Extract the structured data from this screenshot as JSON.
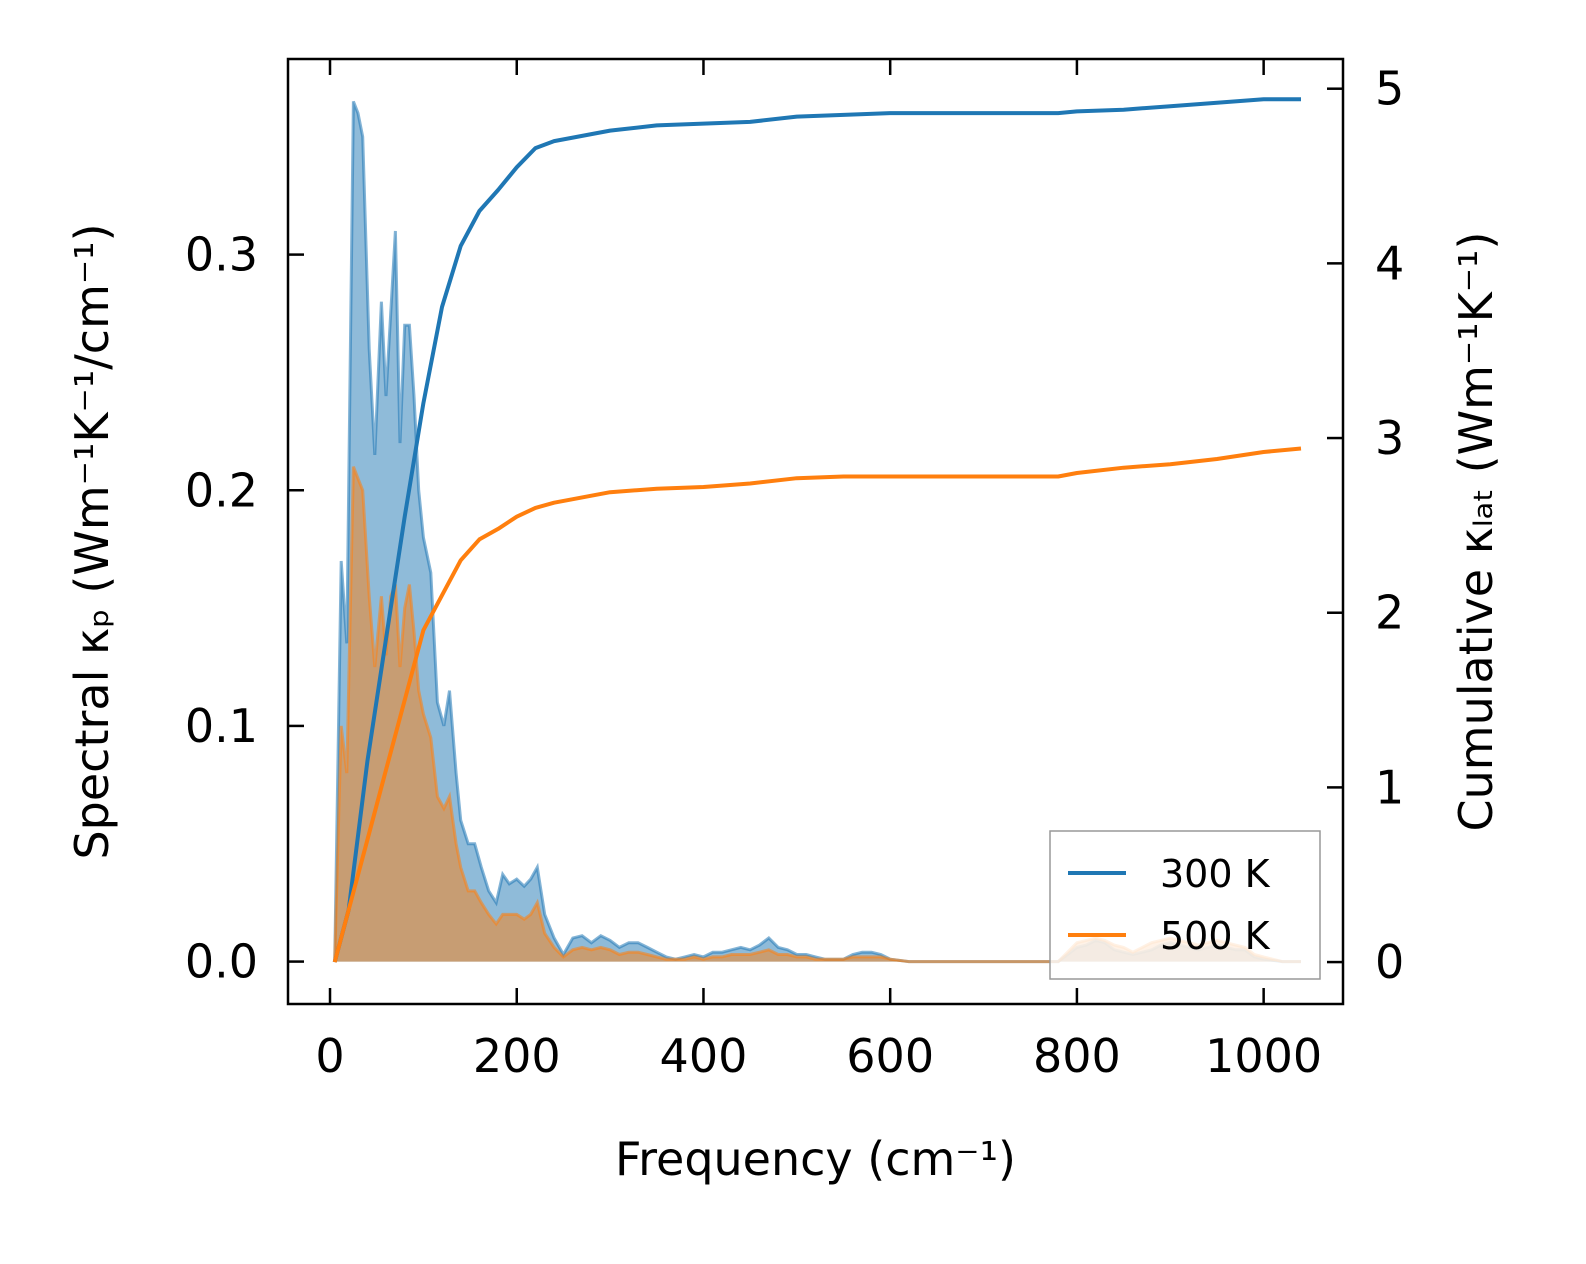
{
  "chart_data": {
    "type": "line",
    "xlabel": "Frequency (cm⁻¹)",
    "ylabel_left": "Spectral κₚ (Wm⁻¹K⁻¹/cm⁻¹)",
    "ylabel_right": "Cumulative κₗₐₜ (Wm⁻¹K⁻¹)",
    "xlim": [
      -45,
      1085
    ],
    "ylim_left": [
      -0.018,
      0.383
    ],
    "ylim_right": [
      -0.24,
      5.17
    ],
    "x_ticks": [
      0,
      200,
      400,
      600,
      800,
      1000
    ],
    "x_tick_labels": [
      "0",
      "200",
      "400",
      "600",
      "800",
      "1000"
    ],
    "y_left_ticks": [
      0.0,
      0.1,
      0.2,
      0.3
    ],
    "y_left_tick_labels": [
      "0.0",
      "0.1",
      "0.2",
      "0.3"
    ],
    "y_right_ticks": [
      0,
      1,
      2,
      3,
      4,
      5
    ],
    "y_right_tick_labels": [
      "0",
      "1",
      "2",
      "3",
      "4",
      "5"
    ],
    "legend": {
      "position": "lower-right",
      "entries": [
        "300 K",
        "500 K"
      ]
    },
    "series": [
      {
        "name": "300 K",
        "color": "#1f77b4",
        "spectral": {
          "x": [
            5,
            12,
            18,
            25,
            30,
            35,
            42,
            48,
            55,
            60,
            65,
            70,
            75,
            80,
            85,
            90,
            95,
            100,
            108,
            115,
            122,
            128,
            135,
            140,
            148,
            155,
            162,
            170,
            178,
            185,
            192,
            200,
            208,
            215,
            222,
            230,
            240,
            250,
            260,
            270,
            280,
            290,
            300,
            310,
            320,
            330,
            340,
            350,
            360,
            370,
            380,
            390,
            400,
            410,
            420,
            430,
            440,
            450,
            460,
            470,
            480,
            490,
            500,
            510,
            520,
            530,
            540,
            550,
            560,
            570,
            580,
            590,
            600,
            620,
            650,
            700,
            750,
            780,
            790,
            800,
            810,
            820,
            830,
            840,
            850,
            860,
            870,
            880,
            890,
            900,
            910,
            920,
            930,
            940,
            950,
            960,
            970,
            980,
            990,
            1000,
            1020,
            1040
          ],
          "y": [
            0.0,
            0.17,
            0.135,
            0.365,
            0.36,
            0.35,
            0.26,
            0.215,
            0.28,
            0.24,
            0.275,
            0.31,
            0.22,
            0.27,
            0.27,
            0.24,
            0.2,
            0.18,
            0.165,
            0.11,
            0.1,
            0.115,
            0.08,
            0.06,
            0.05,
            0.05,
            0.04,
            0.03,
            0.025,
            0.037,
            0.033,
            0.035,
            0.032,
            0.035,
            0.04,
            0.02,
            0.01,
            0.003,
            0.01,
            0.011,
            0.008,
            0.011,
            0.009,
            0.006,
            0.008,
            0.008,
            0.006,
            0.004,
            0.002,
            0.001,
            0.002,
            0.003,
            0.002,
            0.004,
            0.004,
            0.005,
            0.006,
            0.005,
            0.007,
            0.01,
            0.006,
            0.005,
            0.003,
            0.003,
            0.002,
            0.001,
            0.001,
            0.001,
            0.003,
            0.004,
            0.004,
            0.003,
            0.001,
            0.0,
            0.0,
            0.0,
            0.0,
            0.0,
            0.003,
            0.006,
            0.007,
            0.009,
            0.008,
            0.005,
            0.004,
            0.003,
            0.004,
            0.005,
            0.007,
            0.008,
            0.007,
            0.006,
            0.005,
            0.006,
            0.007,
            0.006,
            0.005,
            0.005,
            0.002,
            0.001,
            0.0,
            0.0
          ]
        },
        "cumulative": {
          "x": [
            5,
            20,
            40,
            60,
            80,
            100,
            120,
            140,
            160,
            180,
            200,
            220,
            240,
            260,
            280,
            300,
            350,
            400,
            450,
            500,
            550,
            600,
            650,
            700,
            750,
            780,
            800,
            850,
            900,
            950,
            1000,
            1040
          ],
          "y": [
            0.0,
            0.3,
            1.15,
            1.85,
            2.55,
            3.2,
            3.75,
            4.1,
            4.3,
            4.42,
            4.55,
            4.66,
            4.7,
            4.72,
            4.74,
            4.76,
            4.79,
            4.8,
            4.81,
            4.84,
            4.85,
            4.86,
            4.86,
            4.86,
            4.86,
            4.86,
            4.87,
            4.88,
            4.9,
            4.92,
            4.94,
            4.94
          ]
        }
      },
      {
        "name": "500 K",
        "color": "#ff7f0e",
        "spectral": {
          "x": [
            5,
            12,
            18,
            25,
            30,
            35,
            42,
            48,
            55,
            60,
            65,
            70,
            75,
            80,
            85,
            90,
            95,
            100,
            108,
            115,
            122,
            128,
            135,
            140,
            148,
            155,
            162,
            170,
            178,
            185,
            192,
            200,
            208,
            215,
            222,
            230,
            240,
            250,
            260,
            270,
            280,
            290,
            300,
            310,
            320,
            330,
            340,
            350,
            360,
            370,
            380,
            390,
            400,
            410,
            420,
            430,
            440,
            450,
            460,
            470,
            480,
            490,
            500,
            510,
            520,
            530,
            540,
            550,
            560,
            570,
            580,
            590,
            600,
            620,
            650,
            700,
            750,
            780,
            790,
            800,
            810,
            820,
            830,
            840,
            850,
            860,
            870,
            880,
            890,
            900,
            910,
            920,
            930,
            940,
            950,
            960,
            970,
            980,
            990,
            1000,
            1020,
            1040
          ],
          "y": [
            0.0,
            0.1,
            0.08,
            0.21,
            0.205,
            0.2,
            0.155,
            0.125,
            0.155,
            0.13,
            0.155,
            0.16,
            0.125,
            0.15,
            0.16,
            0.14,
            0.115,
            0.105,
            0.095,
            0.07,
            0.065,
            0.07,
            0.05,
            0.04,
            0.03,
            0.03,
            0.025,
            0.02,
            0.016,
            0.02,
            0.02,
            0.02,
            0.018,
            0.02,
            0.025,
            0.012,
            0.006,
            0.002,
            0.005,
            0.006,
            0.005,
            0.006,
            0.005,
            0.003,
            0.004,
            0.004,
            0.003,
            0.002,
            0.001,
            0.001,
            0.001,
            0.002,
            0.001,
            0.002,
            0.002,
            0.003,
            0.003,
            0.003,
            0.004,
            0.005,
            0.003,
            0.003,
            0.002,
            0.002,
            0.001,
            0.001,
            0.001,
            0.001,
            0.002,
            0.002,
            0.002,
            0.002,
            0.001,
            0.0,
            0.0,
            0.0,
            0.0,
            0.0,
            0.004,
            0.008,
            0.009,
            0.01,
            0.009,
            0.007,
            0.006,
            0.004,
            0.006,
            0.008,
            0.009,
            0.01,
            0.009,
            0.008,
            0.007,
            0.008,
            0.009,
            0.008,
            0.007,
            0.006,
            0.003,
            0.002,
            0.0,
            0.0
          ]
        },
        "cumulative": {
          "x": [
            5,
            20,
            40,
            60,
            80,
            100,
            120,
            140,
            160,
            180,
            200,
            220,
            240,
            260,
            280,
            300,
            350,
            400,
            450,
            500,
            550,
            600,
            650,
            700,
            750,
            780,
            800,
            850,
            900,
            950,
            1000,
            1040
          ],
          "y": [
            0.0,
            0.3,
            0.7,
            1.1,
            1.5,
            1.9,
            2.1,
            2.3,
            2.42,
            2.48,
            2.55,
            2.6,
            2.63,
            2.65,
            2.67,
            2.69,
            2.71,
            2.72,
            2.74,
            2.77,
            2.78,
            2.78,
            2.78,
            2.78,
            2.78,
            2.78,
            2.8,
            2.83,
            2.85,
            2.88,
            2.92,
            2.94
          ]
        }
      }
    ]
  }
}
